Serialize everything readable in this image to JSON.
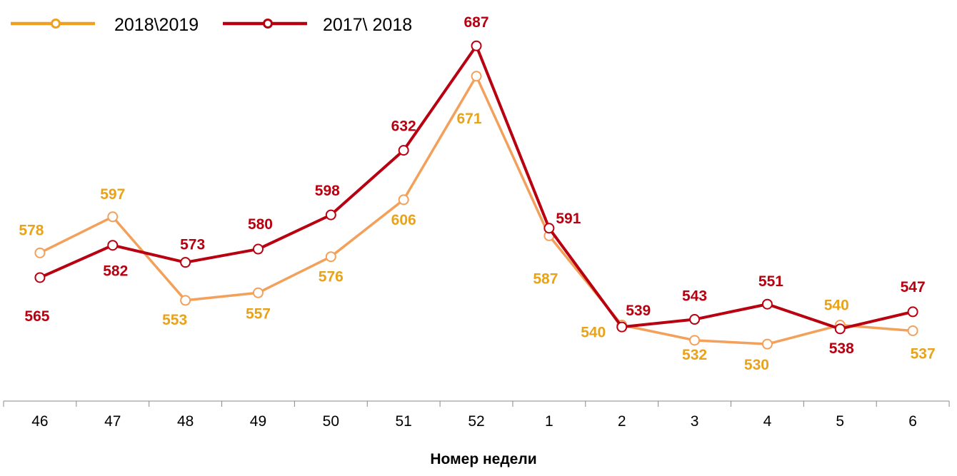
{
  "chart_data": {
    "type": "line",
    "title": "",
    "xlabel": "Номер недели",
    "ylabel": "",
    "categories": [
      "46",
      "47",
      "48",
      "49",
      "50",
      "51",
      "52",
      "1",
      "2",
      "3",
      "4",
      "5",
      "6"
    ],
    "ylim": [
      500,
      710
    ],
    "grid": false,
    "legend_position": "top-left",
    "series": [
      {
        "name": "2018\\2019",
        "color": "#F0A020",
        "line_color": "#F2A05A",
        "label_color": "#E8A31A",
        "values": [
          578,
          597,
          553,
          557,
          576,
          606,
          671,
          587,
          540,
          532,
          530,
          540,
          537
        ]
      },
      {
        "name": "2017\\ 2018",
        "color": "#B80010",
        "line_color": "#B80010",
        "label_color": "#B80010",
        "values": [
          565,
          582,
          573,
          580,
          598,
          632,
          687,
          591,
          539,
          543,
          551,
          538,
          547
        ]
      }
    ]
  }
}
